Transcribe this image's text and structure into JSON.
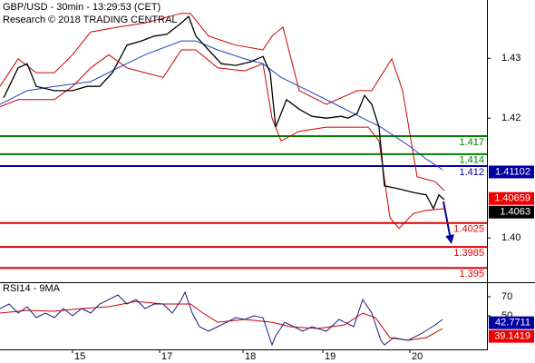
{
  "chart_data": [
    {
      "type": "line",
      "title": "GBP/USD - 30min - 13:29:53 (CET)",
      "subtitle": "Research © 2018 TRADING CENTRAL",
      "xlim": [
        0,
        268.5
      ],
      "ylim": [
        1.39276,
        1.43973
      ],
      "yticks": [
        {
          "value": 1.4,
          "label": "1.40"
        },
        1.42,
        1.43
      ],
      "series": [
        {
          "color": "#cc0000",
          "x": [
            0,
            10,
            20,
            30,
            40,
            50,
            65,
            80,
            100,
            105,
            115,
            130,
            145,
            150,
            156,
            165,
            180,
            197,
            205,
            216,
            222,
            230,
            240,
            245
          ],
          "values": [
            1.4253,
            1.4299,
            1.4276,
            1.4276,
            1.4306,
            1.4344,
            1.4352,
            1.4359,
            1.4375,
            1.4375,
            1.4337,
            1.4322,
            1.4314,
            1.4337,
            1.4352,
            1.4246,
            1.4223,
            1.4246,
            1.4246,
            1.4299,
            1.4246,
            1.4102,
            1.4094,
            1.4079
          ]
        },
        {
          "color": "#cc0000",
          "x": [
            0,
            10,
            20,
            30,
            40,
            50,
            60,
            70,
            80,
            90,
            100,
            108,
            120,
            135,
            145,
            150,
            155,
            165,
            180,
            195,
            203,
            209,
            215,
            220,
            228,
            235,
            245
          ],
          "values": [
            1.4219,
            1.4231,
            1.4231,
            1.4231,
            1.4253,
            1.4284,
            1.4306,
            1.4284,
            1.4276,
            1.4268,
            1.4314,
            1.4314,
            1.4284,
            1.4279,
            1.4291,
            1.42,
            1.4162,
            1.4178,
            1.4185,
            1.4185,
            1.4185,
            1.4162,
            1.4034,
            1.4016,
            1.4041,
            1.4046,
            1.4049
          ]
        },
        {
          "color": "#2040c0",
          "x": [
            0,
            15,
            30,
            50,
            65,
            80,
            100,
            108,
            120,
            135,
            145,
            155,
            170,
            185,
            200,
            210,
            225,
            235,
            244
          ],
          "values": [
            1.4223,
            1.4246,
            1.4253,
            1.4261,
            1.4284,
            1.4306,
            1.4329,
            1.4329,
            1.4314,
            1.4299,
            1.4291,
            1.4268,
            1.4246,
            1.4223,
            1.42,
            1.4185,
            1.4155,
            1.4132,
            1.4114
          ]
        },
        {
          "color": "#000000",
          "x": [
            2,
            10,
            15,
            20,
            30,
            40,
            48,
            55,
            62,
            70,
            78,
            85,
            92,
            100,
            104,
            108,
            115,
            122,
            130,
            138,
            145,
            149,
            152,
            158,
            165,
            172,
            180,
            188,
            192,
            197,
            201,
            205,
            209,
            212,
            220,
            228,
            235,
            239,
            242,
            245
          ],
          "values": [
            1.4234,
            1.4284,
            1.4291,
            1.4253,
            1.4246,
            1.4246,
            1.4253,
            1.4253,
            1.4276,
            1.4322,
            1.4329,
            1.4337,
            1.434,
            1.4359,
            1.437,
            1.4337,
            1.4314,
            1.4291,
            1.4288,
            1.4294,
            1.4303,
            1.4276,
            1.4185,
            1.4231,
            1.4215,
            1.4203,
            1.42,
            1.4203,
            1.42,
            1.4208,
            1.4238,
            1.4223,
            1.4185,
            1.4087,
            1.4082,
            1.4076,
            1.4072,
            1.4049,
            1.4072,
            1.4064
          ]
        }
      ],
      "levels": [
        {
          "value": 1.417,
          "color": "#008000"
        },
        {
          "value": 1.414,
          "color": "#008000"
        },
        {
          "value": 1.412,
          "color": "#0000a0"
        },
        {
          "value": 1.4025,
          "color": "#dd0000"
        },
        {
          "value": 1.3985,
          "color": "#dd0000"
        },
        {
          "value": 1.395,
          "color": "#dd0000"
        }
      ],
      "price_labels": [
        {
          "value": 1.41102,
          "color": "#0000a0"
        },
        {
          "value": 1.40659,
          "color": "#ee0000"
        },
        {
          "value": 1.4063,
          "color": "#000000"
        }
      ]
    },
    {
      "type": "line",
      "title": "RSI14 - 9MA",
      "xlim": [
        0,
        268.5
      ],
      "xticks": [
        {
          "value": 40,
          "label": "15"
        },
        {
          "value": 88,
          "label": "17"
        },
        {
          "value": 134,
          "label": "18"
        },
        {
          "value": 178,
          "label": "19"
        },
        {
          "value": 226,
          "label": "20"
        }
      ],
      "ylim": [
        14.8,
        84.3
      ],
      "yticks": [
        50,
        70
      ],
      "series": [
        {
          "color": "#cc0000",
          "x": [
            0,
            15,
            30,
            45,
            60,
            75,
            90,
            105,
            112,
            120,
            135,
            150,
            160,
            175,
            190,
            200,
            207,
            215,
            225,
            235,
            244
          ],
          "values": [
            52.9,
            55.7,
            54.8,
            57.6,
            59.5,
            65.2,
            62.4,
            62.4,
            52.9,
            43.3,
            46.2,
            43.3,
            38.6,
            36.7,
            40.5,
            52.9,
            48.1,
            27.1,
            24.3,
            27.1,
            36.7
          ]
        },
        {
          "color": "#1a1a80",
          "x": [
            0,
            5,
            10,
            15,
            20,
            25,
            30,
            35,
            40,
            45,
            50,
            55,
            60,
            65,
            70,
            75,
            80,
            85,
            90,
            95,
            100,
            102,
            106,
            110,
            115,
            120,
            125,
            130,
            135,
            140,
            145,
            150,
            152,
            157,
            162,
            167,
            172,
            180,
            187,
            195,
            200,
            205,
            210,
            212,
            217,
            225,
            232,
            240,
            244
          ],
          "values": [
            57.6,
            62.4,
            52.9,
            59.5,
            48.1,
            52.9,
            48.1,
            57.6,
            50,
            57.6,
            52.9,
            62.4,
            67.1,
            71.9,
            62.4,
            67.1,
            57.6,
            62.4,
            62.4,
            52.9,
            67.1,
            74.8,
            52.9,
            38.6,
            33.8,
            38.6,
            43.3,
            48.1,
            46.2,
            50,
            48.1,
            19.5,
            29,
            43.3,
            38.6,
            33.8,
            38.6,
            33.8,
            46.2,
            38.6,
            67.1,
            52.9,
            24.3,
            19.5,
            27.1,
            24.3,
            31,
            40.5,
            46.2
          ]
        }
      ],
      "price_labels": [
        {
          "value": 42.7711,
          "color": "#0000a0"
        },
        {
          "value": 39.1419,
          "color": "#ee0000"
        }
      ]
    }
  ]
}
